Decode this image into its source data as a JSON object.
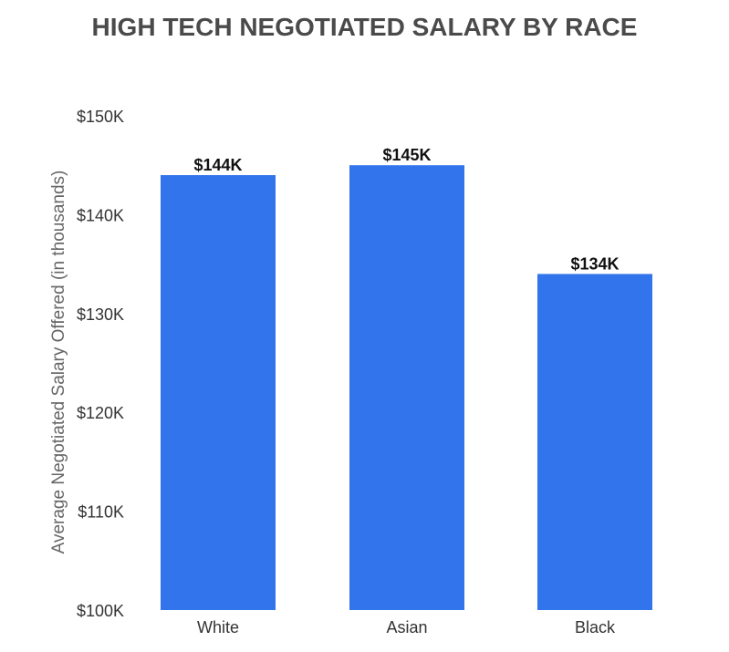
{
  "chart_data": {
    "type": "bar",
    "title": "HIGH TECH NEGOTIATED SALARY BY RACE",
    "xlabel": "",
    "ylabel": "Average Negotiated Salary Offered (in thousands)",
    "categories": [
      "White",
      "Asian",
      "Black"
    ],
    "values": [
      144,
      145,
      134
    ],
    "value_labels": [
      "$144K",
      "$145K",
      "$134K"
    ],
    "ylim": [
      100,
      150
    ],
    "y_ticks": [
      100,
      110,
      120,
      130,
      140,
      150
    ],
    "y_tick_labels": [
      "$100K",
      "$110K",
      "$120K",
      "$130K",
      "$140K",
      "$150K"
    ],
    "grid": false,
    "legend": "none",
    "colors": {
      "bar": "#3274ec",
      "title": "#4a4a4a",
      "axis_text": "#333333",
      "ylabel_text": "#666666",
      "value_label": "#111111"
    }
  }
}
